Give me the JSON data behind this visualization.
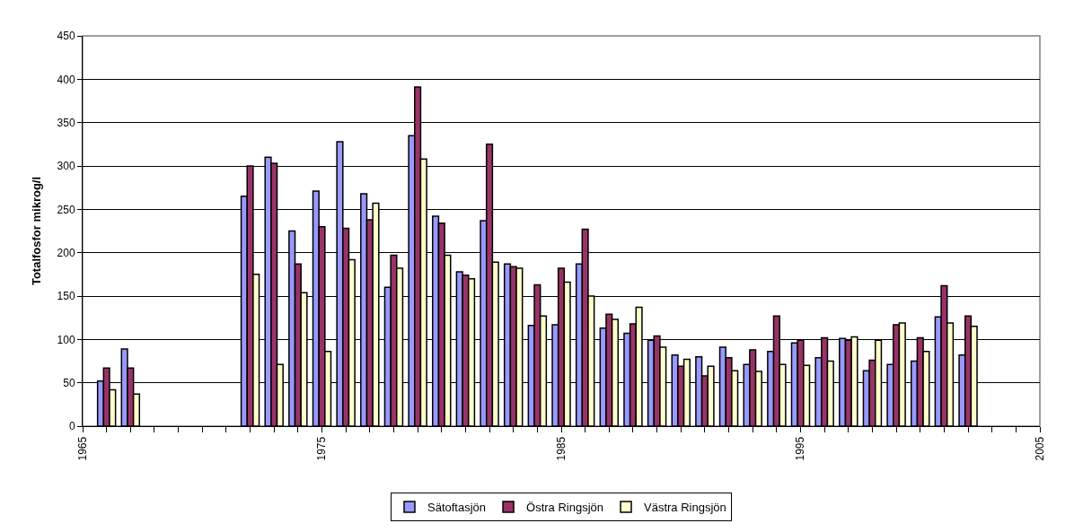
{
  "chart_data": {
    "type": "bar",
    "ylabel": "Totalfosfor mikrog/l",
    "x": [
      1966,
      1967,
      1972,
      1973,
      1974,
      1975,
      1976,
      1977,
      1978,
      1979,
      1980,
      1981,
      1982,
      1983,
      1984,
      1985,
      1986,
      1987,
      1988,
      1989,
      1990,
      1991,
      1992,
      1993,
      1994,
      1995,
      1996,
      1997,
      1998,
      1999,
      2000,
      2001,
      2002
    ],
    "series": [
      {
        "name": "Sätoftasjön",
        "color": "#9999ff",
        "values": [
          52,
          89,
          265,
          310,
          225,
          271,
          328,
          268,
          160,
          335,
          242,
          178,
          237,
          187,
          116,
          117,
          187,
          113,
          107,
          99,
          82,
          80,
          91,
          71,
          86,
          96,
          79,
          101,
          64,
          71,
          75,
          126,
          82
        ]
      },
      {
        "name": "Östra Ringsjön",
        "color": "#993366",
        "values": [
          67,
          67,
          300,
          303,
          187,
          230,
          228,
          238,
          197,
          391,
          234,
          174,
          325,
          184,
          163,
          182,
          227,
          129,
          118,
          104,
          69,
          58,
          79,
          88,
          127,
          99,
          102,
          99,
          76,
          117,
          102,
          162,
          127
        ]
      },
      {
        "name": "Västra Ringsjön",
        "color": "#ffffcc",
        "values": [
          42,
          37,
          175,
          71,
          154,
          86,
          192,
          257,
          182,
          308,
          197,
          170,
          189,
          182,
          127,
          166,
          150,
          123,
          137,
          91,
          77,
          69,
          64,
          63,
          71,
          70,
          75,
          103,
          99,
          119,
          86,
          119,
          115
        ]
      }
    ],
    "xlim": [
      1965,
      2005
    ],
    "xticks": [
      1965,
      1975,
      1985,
      1995,
      2005
    ],
    "ylim": [
      0,
      450
    ],
    "yticks": [
      0,
      50,
      100,
      150,
      200,
      250,
      300,
      350,
      400,
      450
    ],
    "grid": "y",
    "legend": "bottom"
  }
}
